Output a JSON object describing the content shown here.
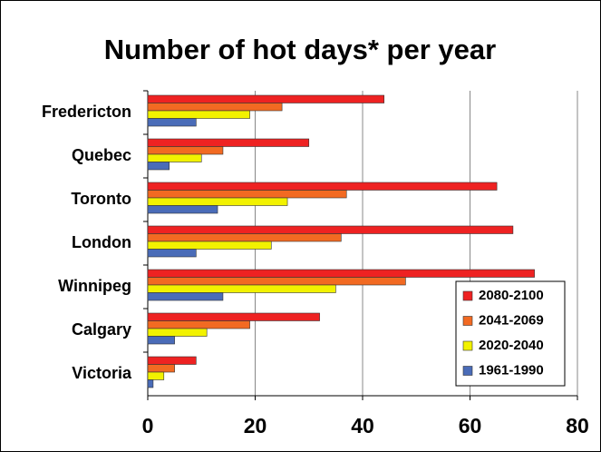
{
  "chart_data": {
    "type": "hbar",
    "title": "Number of hot days* per year",
    "categories": [
      "Fredericton",
      "Quebec",
      "Toronto",
      "London",
      "Winnipeg",
      "Calgary",
      "Victoria"
    ],
    "series": [
      {
        "name": "2080-2100",
        "color": "#ee2222",
        "values": [
          44,
          30,
          65,
          68,
          72,
          32,
          9
        ]
      },
      {
        "name": "2041-2069",
        "color": "#f26a22",
        "values": [
          25,
          14,
          37,
          36,
          48,
          19,
          5
        ]
      },
      {
        "name": "2020-2040",
        "color": "#f2f200",
        "values": [
          19,
          10,
          26,
          23,
          35,
          11,
          3
        ]
      },
      {
        "name": "1961-1990",
        "color": "#4a6cb8",
        "values": [
          9,
          4,
          13,
          9,
          14,
          5,
          1
        ]
      }
    ],
    "xlim": [
      0,
      80
    ],
    "xticks": [
      0,
      20,
      40,
      60,
      80
    ],
    "grid": true,
    "legend": "lower right"
  }
}
